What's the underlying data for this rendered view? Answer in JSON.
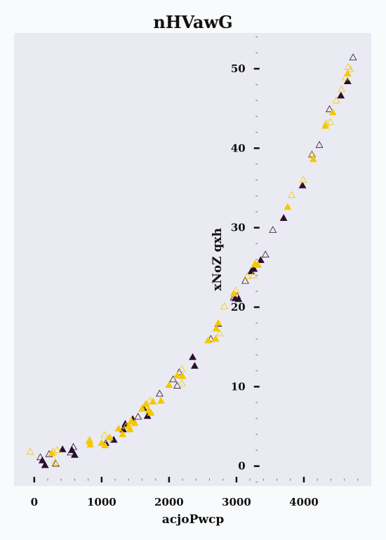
{
  "chart_data": {
    "type": "scatter",
    "title": "nHVawG",
    "xlabel": "acjoPwcp",
    "ylabel": "xNoZ qxh",
    "xlim": [
      -300,
      5000
    ],
    "ylim": [
      -2.5,
      54.5
    ],
    "xticks": [
      0,
      1000,
      2000,
      3000,
      4000
    ],
    "yticks": [
      0,
      10,
      20,
      30,
      40,
      50
    ],
    "grid": false,
    "legend": "none",
    "colors": {
      "background": "#f8fafc",
      "plot_bg": "#eaeaf2",
      "dark": "#2b0f2e",
      "yellow": "#f5c800"
    },
    "series": [
      {
        "marker": "filled-triangle",
        "color": "#2b0f2e",
        "points": [
          [
            120,
            0.7
          ],
          [
            160,
            0.1
          ],
          [
            420,
            2.1
          ],
          [
            560,
            2.0
          ],
          [
            600,
            1.4
          ],
          [
            1060,
            2.9
          ],
          [
            1180,
            3.3
          ],
          [
            1320,
            4.6
          ],
          [
            1350,
            5.3
          ],
          [
            1460,
            5.9
          ],
          [
            1620,
            7.3
          ],
          [
            1680,
            6.3
          ],
          [
            2350,
            13.7
          ],
          [
            2380,
            12.6
          ],
          [
            2730,
            17.9
          ],
          [
            2980,
            21.1
          ],
          [
            3030,
            21.0
          ],
          [
            3220,
            24.5
          ],
          [
            3260,
            24.8
          ],
          [
            3360,
            25.9
          ],
          [
            3700,
            31.2
          ],
          [
            3980,
            35.3
          ],
          [
            4550,
            46.6
          ],
          [
            4650,
            48.4
          ]
        ]
      },
      {
        "marker": "open-triangle",
        "color": "#2b0f2e",
        "points": [
          [
            90,
            1.1
          ],
          [
            220,
            1.5
          ],
          [
            320,
            0.3
          ],
          [
            540,
            1.7
          ],
          [
            580,
            2.4
          ],
          [
            1540,
            6.2
          ],
          [
            1860,
            9.1
          ],
          [
            2060,
            10.9
          ],
          [
            2120,
            10.1
          ],
          [
            2150,
            11.8
          ],
          [
            2620,
            16.0
          ],
          [
            2960,
            21.2
          ],
          [
            3010,
            21.4
          ],
          [
            3130,
            23.3
          ],
          [
            3430,
            26.6
          ],
          [
            3540,
            29.7
          ],
          [
            4120,
            39.2
          ],
          [
            4230,
            40.4
          ],
          [
            4380,
            44.9
          ],
          [
            4730,
            51.4
          ]
        ]
      },
      {
        "marker": "filled-triangle",
        "color": "#f5c800",
        "points": [
          [
            260,
            1.6
          ],
          [
            820,
            3.1
          ],
          [
            830,
            2.7
          ],
          [
            1000,
            2.9
          ],
          [
            1050,
            2.6
          ],
          [
            1120,
            3.6
          ],
          [
            1250,
            4.7
          ],
          [
            1310,
            4.0
          ],
          [
            1400,
            5.0
          ],
          [
            1420,
            4.6
          ],
          [
            1440,
            5.6
          ],
          [
            1490,
            5.4
          ],
          [
            1600,
            7.2
          ],
          [
            1660,
            7.8
          ],
          [
            1700,
            7.0
          ],
          [
            1730,
            6.7
          ],
          [
            1760,
            8.1
          ],
          [
            1880,
            8.2
          ],
          [
            2000,
            10.2
          ],
          [
            2120,
            11.4
          ],
          [
            2200,
            11.3
          ],
          [
            2580,
            15.8
          ],
          [
            2690,
            16.0
          ],
          [
            2700,
            17.3
          ],
          [
            2730,
            18.0
          ],
          [
            2960,
            21.7
          ],
          [
            3280,
            25.4
          ],
          [
            3320,
            25.3
          ],
          [
            3760,
            32.6
          ],
          [
            4140,
            38.6
          ],
          [
            4320,
            42.8
          ],
          [
            4430,
            44.5
          ],
          [
            4650,
            49.4
          ]
        ]
      },
      {
        "marker": "open-triangle",
        "color": "#f5c800",
        "points": [
          [
            -60,
            1.8
          ],
          [
            280,
            1.8
          ],
          [
            310,
            0.5
          ],
          [
            340,
            2.0
          ],
          [
            820,
            3.3
          ],
          [
            1040,
            3.9
          ],
          [
            1100,
            3.4
          ],
          [
            1360,
            5.0
          ],
          [
            1440,
            5.7
          ],
          [
            1640,
            7.6
          ],
          [
            1720,
            8.2
          ],
          [
            2190,
            12.2
          ],
          [
            2190,
            10.4
          ],
          [
            2750,
            16.7
          ],
          [
            2820,
            20.1
          ],
          [
            2990,
            22.1
          ],
          [
            3160,
            23.9
          ],
          [
            3250,
            24.0
          ],
          [
            3270,
            25.4
          ],
          [
            3820,
            34.1
          ],
          [
            3990,
            36.0
          ],
          [
            4120,
            39.1
          ],
          [
            4330,
            43.1
          ],
          [
            4390,
            43.3
          ],
          [
            4480,
            46.0
          ],
          [
            4560,
            47.4
          ],
          [
            4620,
            48.9
          ],
          [
            4660,
            50.2
          ],
          [
            4690,
            49.9
          ]
        ]
      }
    ]
  }
}
